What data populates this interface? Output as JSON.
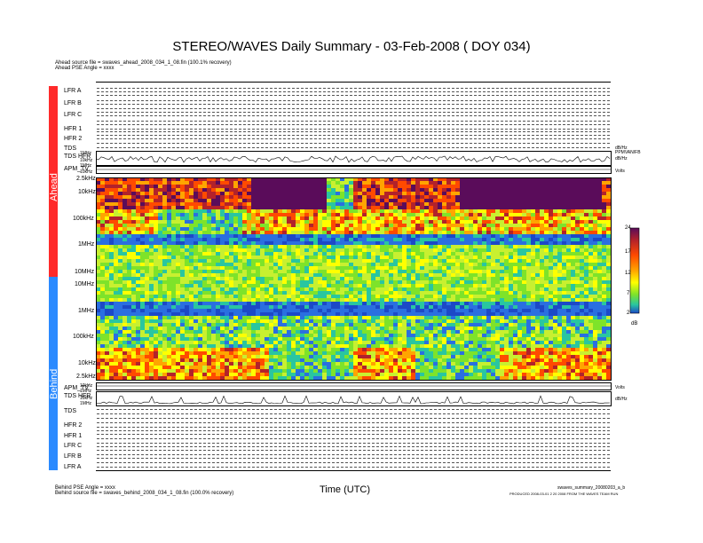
{
  "title": "STEREO/WAVES Daily Summary - 03-Feb-2008 ( DOY 034)",
  "ahead": {
    "source": "Ahead source file = swaves_ahead_2008_034_1_08.fin (100.1% recovery)",
    "pse_angle": "Ahead PSE Angle = xxxx",
    "side_label": "Ahead",
    "panel_labels": [
      "LFR A",
      "LFR B",
      "LFR C",
      "HFR 1",
      "HFR 2",
      "TDS",
      "TDS HFR",
      "APM_TV"
    ]
  },
  "behind": {
    "source": "Behind source file = swaves_behind_2008_034_1_08.fin (100.0% recovery)",
    "pse_angle": "Behind PSE Angle = xxxx",
    "side_label": "Behind",
    "panel_labels": [
      "APM_TV",
      "TDS HFR",
      "TDS",
      "HFR 2",
      "HFR 1",
      "LFR C",
      "LFR B",
      "LFR A"
    ]
  },
  "xaxis_label": "Time (UTC)",
  "footer_right_1": "swaves_summary_20080203_a_b",
  "footer_right_2": "PRODUCED 2008-03-01 2 20 2008 FROM THE WAVES TEAM RUN",
  "upper_right_units": [
    "dB/Hz",
    "PPMVAN/FB"
  ],
  "right_labels": {
    "volts": "Volts",
    "dbhz": "dB/Hz"
  },
  "colorbar": {
    "ticks": [
      "24",
      "17",
      "12",
      "7",
      "2"
    ],
    "unit": "dB",
    "colors": [
      "#5a0c5a",
      "#b2222b",
      "#ff4a00",
      "#ffa500",
      "#ffff00",
      "#7ee32a",
      "#29c6a0",
      "#1c49c7"
    ]
  },
  "chart_data": {
    "type": "heatmap",
    "title": "STEREO/WAVES Daily Summary - 03-Feb-2008 ( DOY 034)",
    "xlabel": "Time (UTC)",
    "ahead_freq_ticks": [
      "2.5kHz",
      "10kHz",
      "100kHz",
      "1MHz",
      "10MHz"
    ],
    "behind_freq_ticks": [
      "10MHz",
      "1MHz",
      "100kHz",
      "10kHz",
      "2.5kHz"
    ],
    "small_freq_ticks_ahead": [
      "1MHz",
      "10kHz",
      "1MHz",
      "10kHz"
    ],
    "small_freq_ticks_behind": [
      "10kHz",
      "1MHz",
      "10kHz",
      "1MHz"
    ],
    "colorbar_range_db": [
      2,
      24
    ],
    "colorbar_unit": "dB"
  }
}
